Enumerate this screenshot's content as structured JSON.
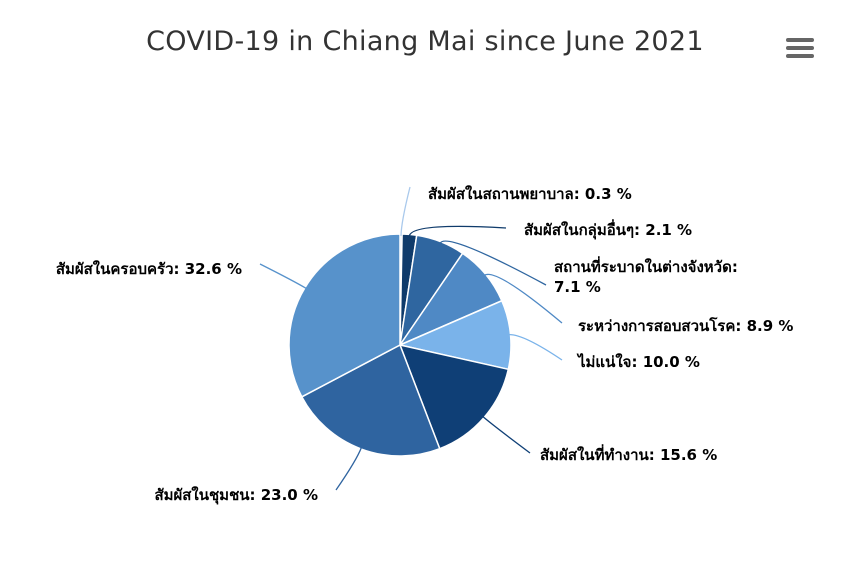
{
  "chart_data": {
    "type": "pie",
    "title": "COVID-19 in Chiang Mai since June 2021",
    "unit": "%",
    "slices": [
      {
        "name": "สัมผัสในสถานพยาบาล",
        "value": 0.3,
        "color": "#a9c9ec"
      },
      {
        "name": "สัมผัสในกลุ่มอื่นๆ",
        "value": 2.1,
        "color": "#0f3b6b"
      },
      {
        "name": "สถานที่ระบาดในต่างจังหวัด",
        "value": 7.1,
        "color": "#2f66a0"
      },
      {
        "name": "ระหว่างการสอบสวนโรค",
        "value": 8.9,
        "color": "#4f89c5"
      },
      {
        "name": "ไม่แน่ใจ",
        "value": 10.0,
        "color": "#7ab3ea"
      },
      {
        "name": "สัมผัสในที่ทำงาน",
        "value": 15.6,
        "color": "#0f3f76"
      },
      {
        "name": "สัมผัสในชุมชน",
        "value": 23.0,
        "color": "#2f64a0"
      },
      {
        "name": "สัมผัสในครอบครัว",
        "value": 32.6,
        "color": "#5792cb"
      }
    ],
    "data_labels": [
      {
        "lines": [
          "สัมผัสในสถานพยาบาล: 0.3 %"
        ]
      },
      {
        "lines": [
          "สัมผัสในกลุ่มอื่นๆ: 2.1 %"
        ]
      },
      {
        "lines": [
          "สถานที่ระบาดในต่างจังหวัด:",
          "7.1 %"
        ]
      },
      {
        "lines": [
          "ระหว่างการสอบสวนโรค: 8.9 %"
        ]
      },
      {
        "lines": [
          "ไม่แน่ใจ: 10.0 %"
        ]
      },
      {
        "lines": [
          "สัมผัสในที่ทำงาน: 15.6 %"
        ]
      },
      {
        "lines": [
          "สัมผัสในชุมชน: 23.0 %"
        ]
      },
      {
        "lines": [
          "สัมผัสในครอบครัว: 32.6 %"
        ]
      }
    ]
  },
  "menu_icon": "hamburger-menu-icon"
}
